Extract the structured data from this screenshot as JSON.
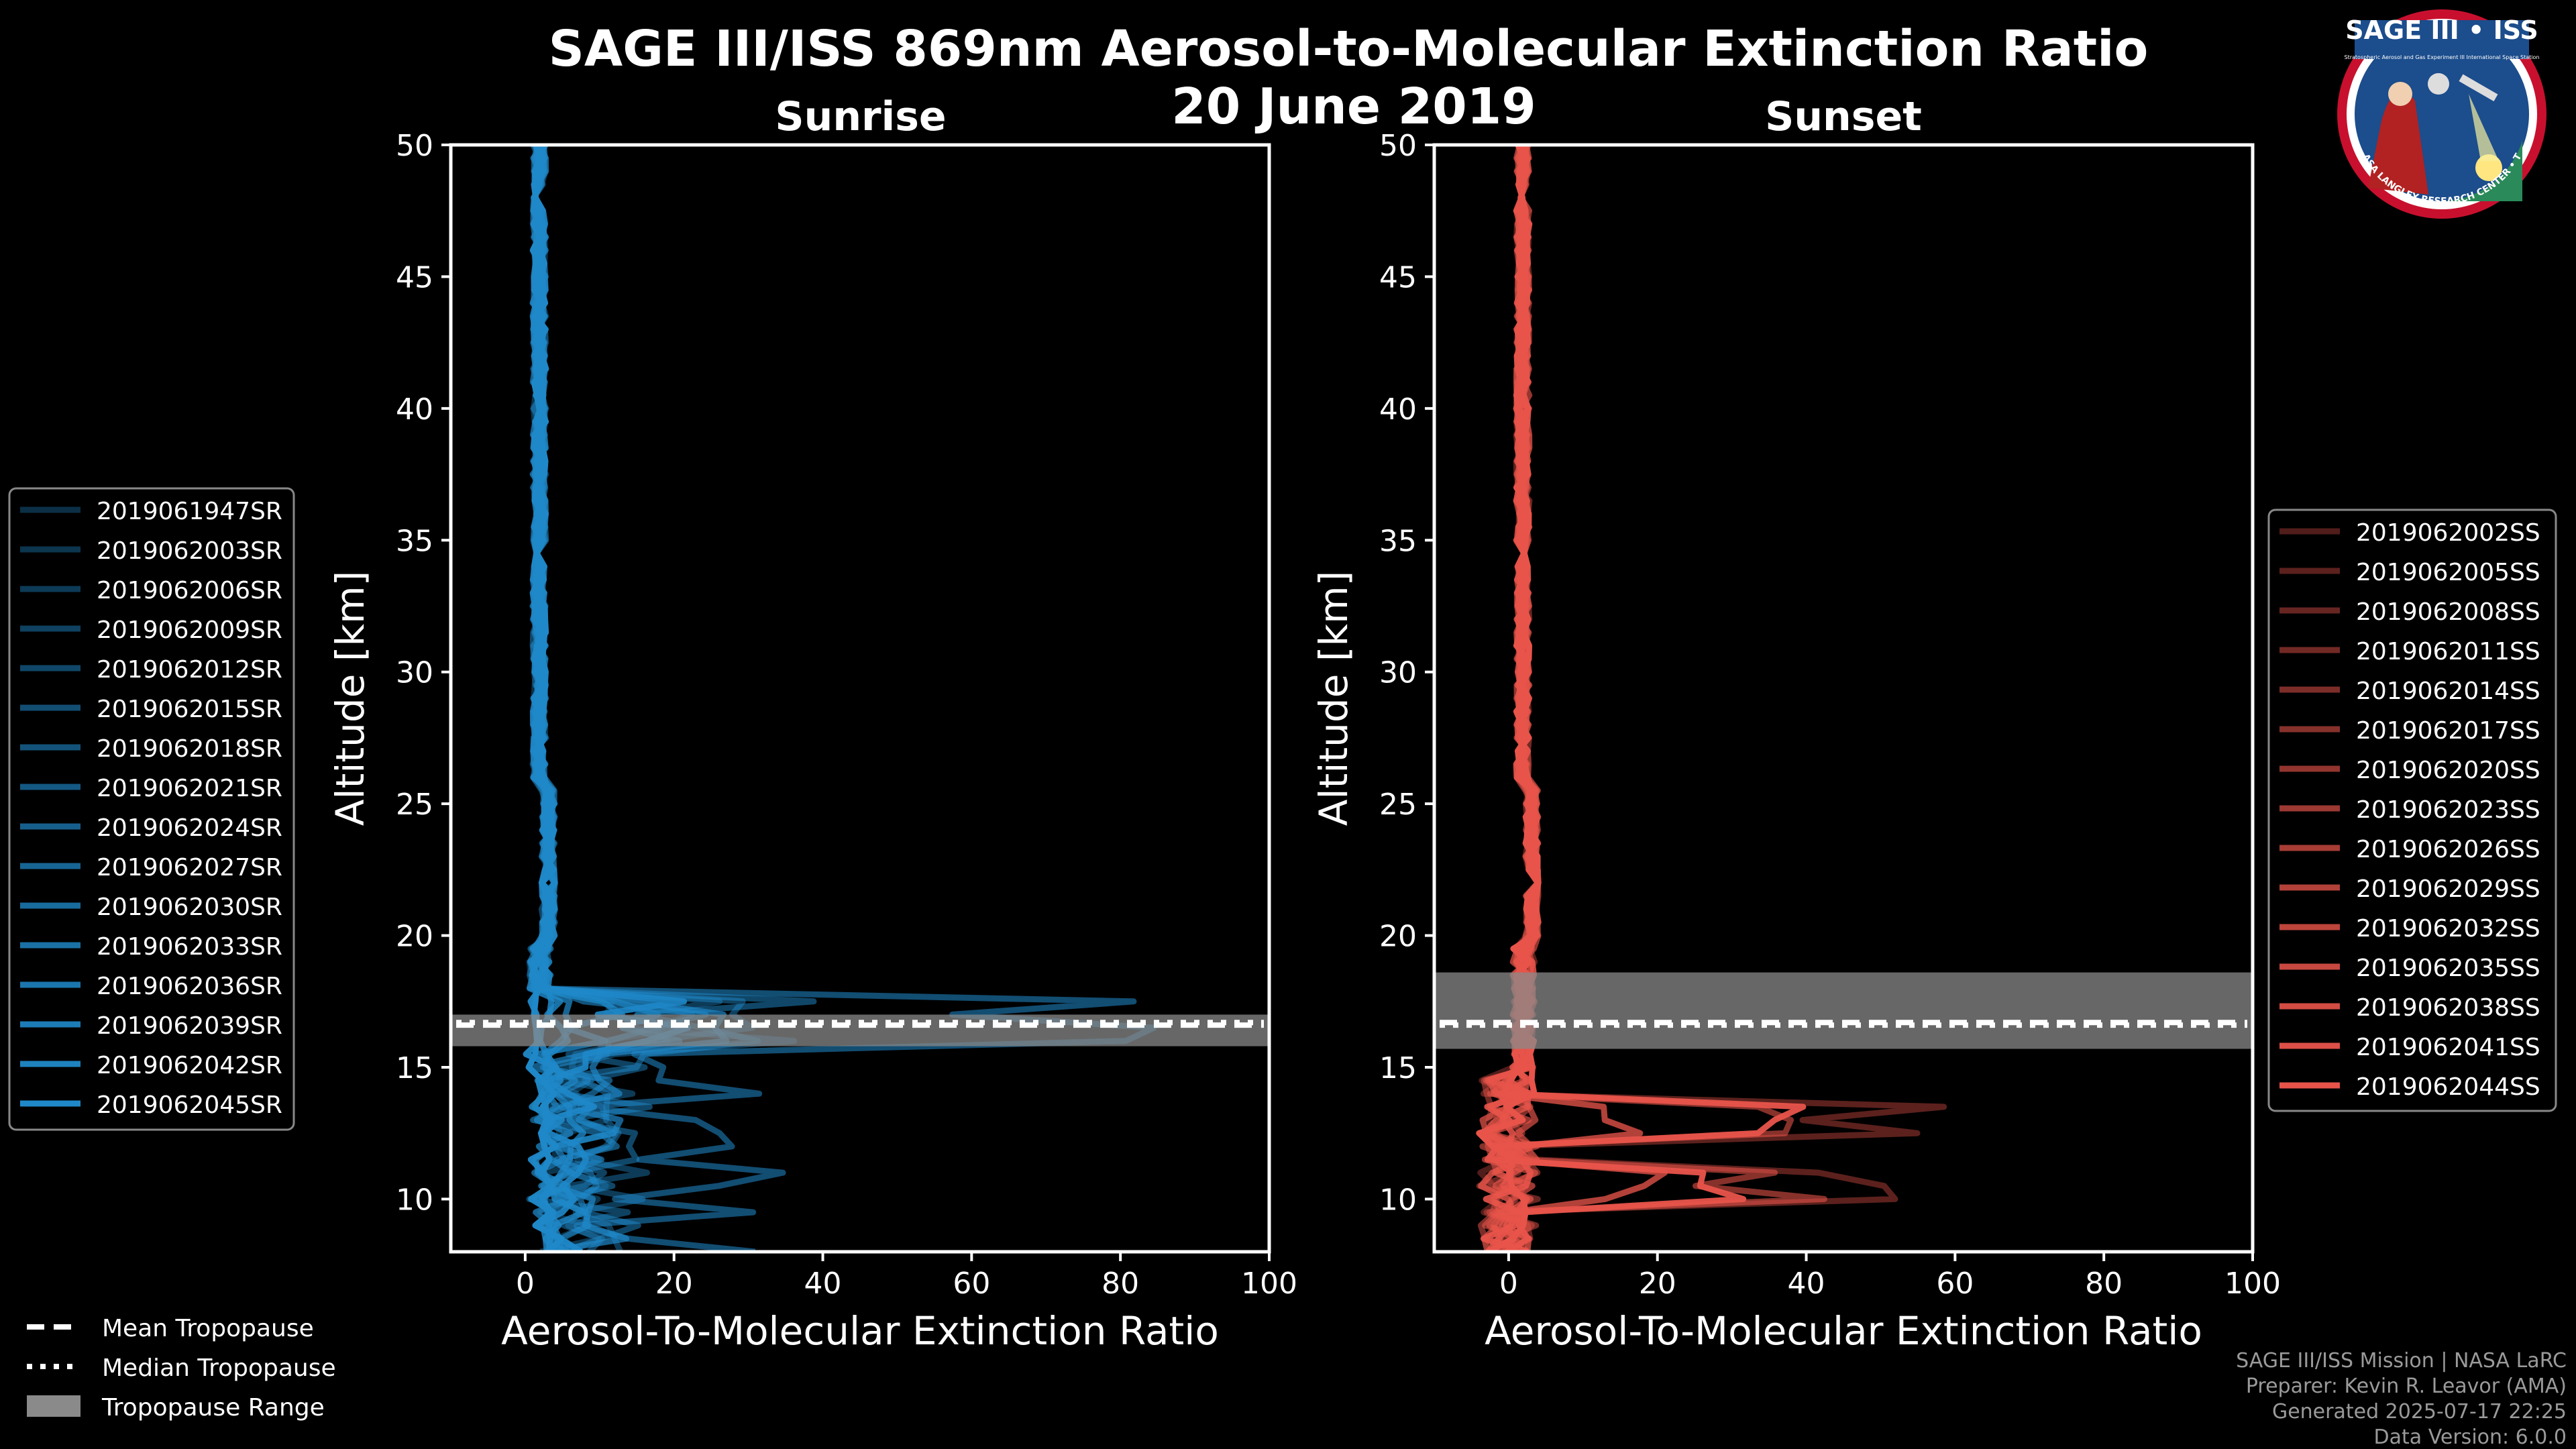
{
  "title_line1": "SAGE III/ISS 869nm Aerosol-to-Molecular Extinction Ratio",
  "title_line2": "20 June 2019",
  "logo": {
    "text": "SAGE III • ISS",
    "ring_text": "BALL • NASA LANGLEY RESEARCH CENTER • TAS • ESA",
    "tagline": "Stratospheric Aerosol and Gas Experiment III International Space Station"
  },
  "colors": {
    "background": "#000000",
    "sunrise": "#1f88c8",
    "sunset": "#e8544a",
    "tropopause_band": "#8a8a8a",
    "axis": "#ffffff"
  },
  "footer": [
    "SAGE III/ISS Mission | NASA LaRC",
    "Preparer: Kevin R. Leavor (AMA)",
    "Generated 2025-07-17 22:25",
    "Data Version: 6.0.0"
  ],
  "tropopause_legend": [
    {
      "label": "Mean Tropopause",
      "style": "dashed"
    },
    {
      "label": "Median Tropopause",
      "style": "dotted"
    },
    {
      "label": "Tropopause Range",
      "style": "band"
    }
  ],
  "chart_data": [
    {
      "type": "line",
      "panel": "sunrise",
      "title": "Sunrise",
      "xlabel": "Aerosol-To-Molecular Extinction Ratio",
      "ylabel": "Altitude [km]",
      "xlim": [
        -10,
        100
      ],
      "ylim": [
        8,
        50
      ],
      "xticks": [
        0,
        20,
        40,
        60,
        80,
        100
      ],
      "yticks": [
        10,
        15,
        20,
        25,
        30,
        35,
        40,
        45,
        50
      ],
      "legend_position": "left",
      "series": [
        {
          "name": "2019061947SR"
        },
        {
          "name": "2019062003SR"
        },
        {
          "name": "2019062006SR"
        },
        {
          "name": "2019062009SR"
        },
        {
          "name": "2019062012SR"
        },
        {
          "name": "2019062015SR"
        },
        {
          "name": "2019062018SR"
        },
        {
          "name": "2019062021SR"
        },
        {
          "name": "2019062024SR"
        },
        {
          "name": "2019062027SR"
        },
        {
          "name": "2019062030SR"
        },
        {
          "name": "2019062033SR"
        },
        {
          "name": "2019062036SR"
        },
        {
          "name": "2019062039SR"
        },
        {
          "name": "2019062042SR"
        },
        {
          "name": "2019062045SR"
        }
      ],
      "tropopause": {
        "mean": 16.6,
        "median": 16.7,
        "range": [
          15.8,
          17.0
        ]
      },
      "peak_x": [
        26,
        30,
        41,
        40,
        47,
        89,
        25,
        30,
        29,
        10,
        15,
        6,
        4,
        22,
        2,
        3
      ]
    },
    {
      "type": "line",
      "panel": "sunset",
      "title": "Sunset",
      "xlabel": "Aerosol-To-Molecular Extinction Ratio",
      "ylabel": "Altitude [km]",
      "xlim": [
        -10,
        100
      ],
      "ylim": [
        8,
        50
      ],
      "xticks": [
        0,
        20,
        40,
        60,
        80,
        100
      ],
      "yticks": [
        10,
        15,
        20,
        25,
        30,
        35,
        40,
        45,
        50
      ],
      "legend_position": "right",
      "series": [
        {
          "name": "2019062002SS"
        },
        {
          "name": "2019062005SS"
        },
        {
          "name": "2019062008SS"
        },
        {
          "name": "2019062011SS"
        },
        {
          "name": "2019062014SS"
        },
        {
          "name": "2019062017SS"
        },
        {
          "name": "2019062020SS"
        },
        {
          "name": "2019062023SS"
        },
        {
          "name": "2019062026SS"
        },
        {
          "name": "2019062029SS"
        },
        {
          "name": "2019062032SS"
        },
        {
          "name": "2019062035SS"
        },
        {
          "name": "2019062038SS"
        },
        {
          "name": "2019062041SS"
        },
        {
          "name": "2019062044SS"
        }
      ],
      "tropopause": {
        "mean": 16.7,
        "median": 16.6,
        "range": [
          15.7,
          18.6
        ]
      },
      "peak_x": [
        2,
        62,
        5,
        3,
        2,
        44,
        3,
        2,
        2,
        22,
        3,
        2,
        2,
        44,
        3
      ]
    }
  ]
}
